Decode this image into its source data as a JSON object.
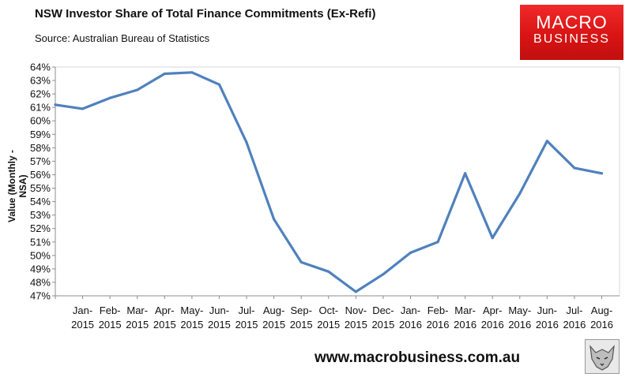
{
  "header": {
    "title": "NSW Investor Share of Total Finance Commitments (Ex-Refi)",
    "source": "Source: Australian Bureau of Statistics"
  },
  "logo": {
    "line1": "MACRO",
    "line2": "BUSINESS"
  },
  "footer": {
    "website": "www.macrobusiness.com.au"
  },
  "colors": {
    "line": "#4f81bd",
    "logo_red": "#e01b1b",
    "gridline": "#d9d9d9"
  },
  "chart_data": {
    "type": "line",
    "title": "NSW Investor Share of Total Finance Commitments (Ex-Refi)",
    "ylabel": "Value (Monthly - NSA)",
    "xlabel": "",
    "ylim": [
      47,
      64
    ],
    "yticks": [
      "47%",
      "48%",
      "49%",
      "50%",
      "51%",
      "52%",
      "53%",
      "54%",
      "55%",
      "56%",
      "57%",
      "58%",
      "59%",
      "60%",
      "61%",
      "62%",
      "63%",
      "64%"
    ],
    "grid": false,
    "categories": [
      [
        "",
        ""
      ],
      [
        "Jan-",
        "2015"
      ],
      [
        "Feb-",
        "2015"
      ],
      [
        "Mar-",
        "2015"
      ],
      [
        "Apr-",
        "2015"
      ],
      [
        "May-",
        "2015"
      ],
      [
        "Jun-",
        "2015"
      ],
      [
        "Jul-",
        "2015"
      ],
      [
        "Aug-",
        "2015"
      ],
      [
        "Sep-",
        "2015"
      ],
      [
        "Oct-",
        "2015"
      ],
      [
        "Nov-",
        "2015"
      ],
      [
        "Dec-",
        "2015"
      ],
      [
        "Jan-",
        "2016"
      ],
      [
        "Feb-",
        "2016"
      ],
      [
        "Mar-",
        "2016"
      ],
      [
        "Apr-",
        "2016"
      ],
      [
        "May-",
        "2016"
      ],
      [
        "Jun-",
        "2016"
      ],
      [
        "Jul-",
        "2016"
      ],
      [
        "Aug-",
        "2016"
      ]
    ],
    "series": [
      {
        "values": [
          61.2,
          60.9,
          61.7,
          62.3,
          63.5,
          63.6,
          62.7,
          58.4,
          52.7,
          49.5,
          48.8,
          47.3,
          48.6,
          50.2,
          51.0,
          56.1,
          51.3,
          54.6,
          58.5,
          56.5,
          56.1
        ]
      }
    ]
  }
}
